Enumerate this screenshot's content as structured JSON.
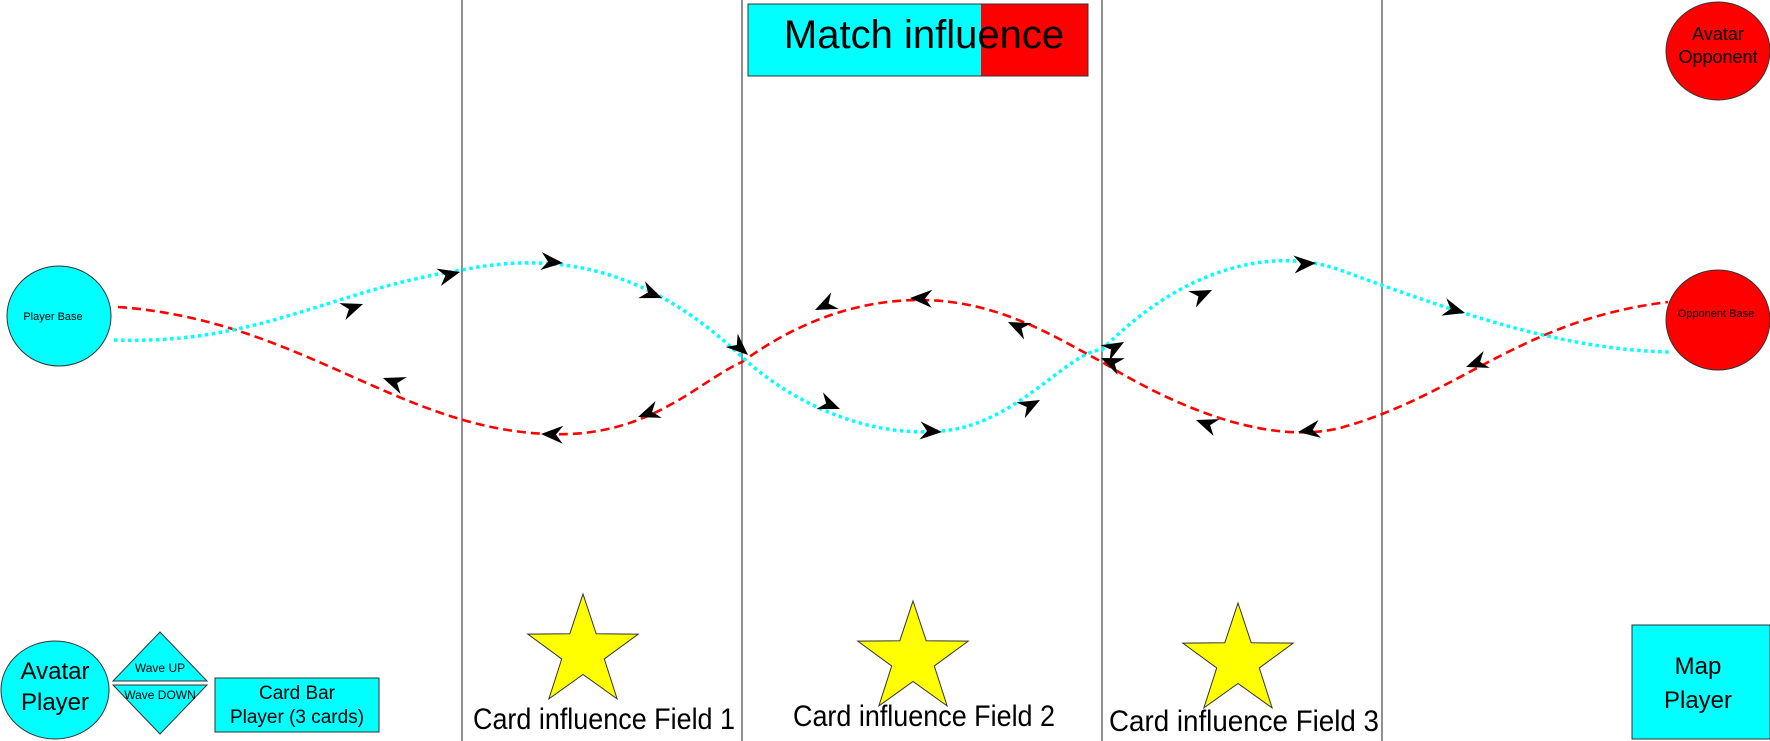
{
  "colors": {
    "player": "#00ffff",
    "opponent": "#ff0000",
    "star": "#ffff00",
    "divider": "#555555",
    "arrow": "#000000"
  },
  "match_influence": {
    "label": "Match influence",
    "player_share": 0.6867
  },
  "player_base": {
    "label": "Player Base",
    "icon": "circle"
  },
  "opponent_base": {
    "label": "Opponent Base",
    "icon": "circle"
  },
  "avatar_opponent": {
    "line1": "Avatar",
    "line2": "Opponent",
    "icon": "circle"
  },
  "avatar_player": {
    "line1": "Avatar",
    "line2": "Player",
    "icon": "circle"
  },
  "wave_up": {
    "label": "Wave UP",
    "icon": "triangle-up"
  },
  "wave_down": {
    "label": "Wave DOWN",
    "icon": "triangle-down"
  },
  "card_bar": {
    "line1": "Card Bar",
    "line2": "Player (3 cards)"
  },
  "map_player": {
    "line1": "Map",
    "line2": "Player"
  },
  "fields": [
    {
      "label": "Card influence Field 1",
      "icon": "star"
    },
    {
      "label": "Card influence Field 2",
      "icon": "star"
    },
    {
      "label": "Card influence Field  3",
      "icon": "star"
    }
  ]
}
